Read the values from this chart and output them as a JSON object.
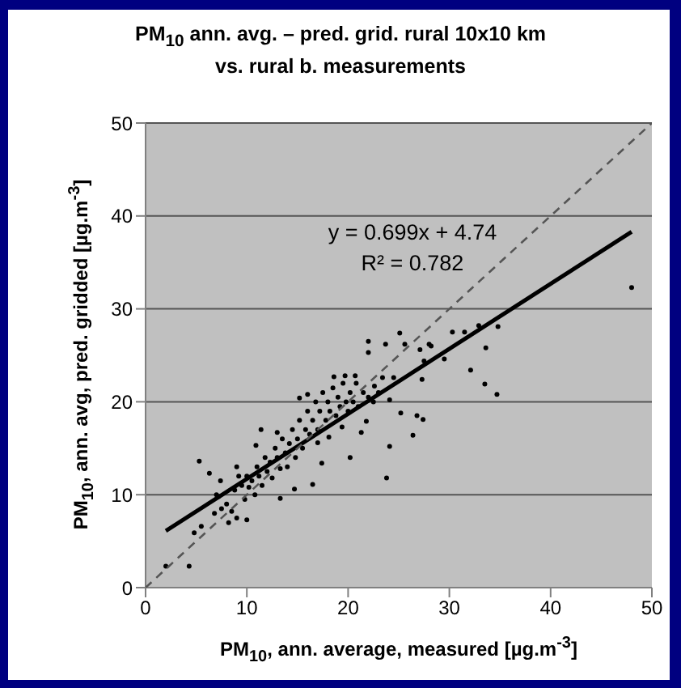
{
  "chart_data": {
    "type": "scatter",
    "title": "PM$_{10}$ ann. avg. – pred. grid. rural 10x10 km\nvs. rural b. measurements",
    "xlabel": "PM$_{10}$, ann. average, measured  [µg.m$^{-3}$]",
    "ylabel": "PM$_{10}$, ann. avg, pred. gridded  [µg.m$^{-3}$]",
    "xlim": [
      0,
      50
    ],
    "xticks": [
      0,
      10,
      20,
      30,
      40,
      50
    ],
    "ylim": [
      0,
      50
    ],
    "yticks": [
      0,
      10,
      20,
      30,
      40,
      50
    ],
    "grid": "y",
    "legend": false,
    "annotations": [
      "y = 0.699x + 4.74",
      "R² = 0.782"
    ],
    "series": [
      {
        "marker": "circle",
        "color": "#000000",
        "x": [
          48.0,
          34.7,
          33.5,
          32.1,
          33.6,
          34.8,
          32.9,
          31.5,
          30.3,
          29.5,
          28.0,
          27.5,
          27.3,
          27.4,
          26.8,
          26.4,
          25.2,
          24.1,
          23.8,
          24.1,
          25.1,
          23.7,
          22.0,
          22.0,
          25.6,
          27.1,
          28.2,
          20.2,
          17.4,
          16.5,
          14.7,
          13.3,
          10.0,
          5.3,
          6.3,
          4.3,
          2.0,
          4.8,
          5.5,
          7.2,
          7.4,
          9.0,
          10.9,
          11.4,
          13.0,
          15.2,
          16.0,
          18.6,
          19.7,
          20.7,
          22.6,
          23.4,
          24.5,
          21.3,
          21.8,
          19.4,
          18.1,
          17.0,
          8.0,
          8.5,
          8.8,
          9.0,
          9.5,
          9.8,
          10.0,
          10.2,
          10.5,
          10.8,
          11.0,
          11.2,
          11.5,
          11.8,
          12.0,
          12.3,
          12.5,
          12.8,
          13.0,
          13.3,
          13.5,
          13.8,
          14.0,
          14.2,
          14.5,
          14.8,
          15.0,
          15.2,
          15.5,
          15.8,
          16.0,
          16.2,
          16.5,
          16.8,
          17.0,
          17.2,
          17.5,
          17.8,
          18.0,
          18.2,
          18.5,
          18.8,
          19.0,
          19.2,
          19.5,
          19.8,
          20.0,
          20.2,
          20.5,
          20.8,
          21.0,
          21.5,
          22.0,
          22.5,
          23.0,
          7.5,
          8.2,
          9.2,
          6.8,
          7.0
        ],
        "values": [
          32.3,
          20.8,
          21.9,
          23.4,
          25.8,
          28.1,
          28.2,
          27.5,
          27.5,
          24.6,
          26.2,
          24.4,
          22.4,
          18.1,
          18.5,
          16.4,
          18.8,
          15.2,
          11.8,
          20.2,
          27.4,
          26.2,
          26.5,
          25.3,
          26.2,
          25.6,
          26.0,
          14.0,
          13.4,
          11.1,
          10.6,
          9.6,
          7.3,
          13.6,
          12.3,
          2.3,
          2.3,
          5.9,
          6.6,
          9.8,
          11.5,
          13.0,
          15.3,
          17.0,
          16.7,
          20.4,
          20.8,
          22.7,
          22.8,
          22.8,
          21.7,
          22.6,
          22.6,
          16.7,
          17.9,
          17.3,
          16.2,
          15.6,
          9.0,
          8.2,
          10.5,
          7.5,
          11.0,
          9.5,
          12.0,
          10.8,
          11.5,
          10.0,
          13.0,
          12.0,
          11.0,
          14.0,
          12.5,
          13.5,
          11.8,
          15.0,
          14.0,
          12.8,
          16.0,
          14.5,
          13.0,
          15.5,
          17.0,
          14.0,
          16.0,
          18.0,
          15.0,
          17.0,
          19.0,
          16.5,
          18.0,
          20.0,
          17.0,
          19.0,
          21.0,
          18.0,
          20.0,
          19.0,
          21.5,
          18.5,
          20.5,
          19.5,
          22.0,
          20.0,
          19.0,
          21.0,
          20.0,
          22.0,
          19.5,
          21.0,
          20.5,
          20.0,
          21.0,
          8.5,
          7.0,
          12.0,
          8.0,
          10.0
        ]
      },
      {
        "type": "line",
        "color": "#000000",
        "line_style": "solid",
        "marker": "none",
        "x": [
          2,
          48
        ],
        "values": [
          6.1,
          38.3
        ]
      },
      {
        "type": "line",
        "color": "#555555",
        "line_style": "dashed",
        "marker": "none",
        "x": [
          0,
          50
        ],
        "values": [
          0,
          50
        ]
      }
    ]
  }
}
